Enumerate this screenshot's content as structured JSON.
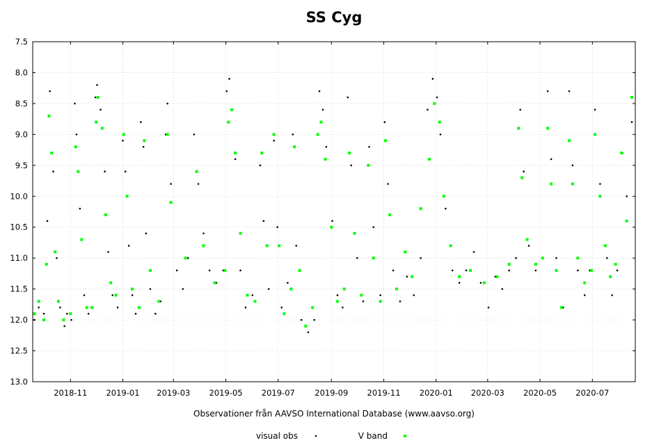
{
  "chart_data": {
    "type": "scatter",
    "title": "SS Cyg",
    "xlabel": "Observationer från AAVSO International Database (www.aavso.org)",
    "ylabel": "",
    "y_inverted": true,
    "ylim": [
      7.5,
      13.0
    ],
    "yticks": [
      "7.5",
      "8.0",
      "8.5",
      "9.0",
      "9.5",
      "10.0",
      "10.5",
      "11.0",
      "11.5",
      "12.0",
      "12.5",
      "13.0"
    ],
    "xlim": [
      "2018-09-18",
      "2020-08-20"
    ],
    "xticks": [
      "2018-11",
      "2019-01",
      "2019-03",
      "2019-05",
      "2019-07",
      "2019-09",
      "2019-11",
      "2020-01",
      "2020-03",
      "2020-05",
      "2020-07"
    ],
    "grid": true,
    "legend_position": "bottom",
    "colors": {
      "visual": "#000000",
      "vband": "#00ff00"
    },
    "series": [
      {
        "name": "visual obs",
        "marker": "dot",
        "points": [
          [
            "2018-09-20",
            12.0
          ],
          [
            "2018-09-25",
            11.8
          ],
          [
            "2018-10-01",
            11.9
          ],
          [
            "2018-10-05",
            10.4
          ],
          [
            "2018-10-08",
            8.3
          ],
          [
            "2018-10-12",
            9.6
          ],
          [
            "2018-10-16",
            11.0
          ],
          [
            "2018-10-20",
            11.8
          ],
          [
            "2018-10-25",
            12.1
          ],
          [
            "2018-10-28",
            11.9
          ],
          [
            "2018-11-02",
            12.0
          ],
          [
            "2018-11-06",
            8.5
          ],
          [
            "2018-11-08",
            9.0
          ],
          [
            "2018-11-12",
            10.2
          ],
          [
            "2018-11-17",
            11.6
          ],
          [
            "2018-11-22",
            11.9
          ],
          [
            "2018-11-30",
            8.4
          ],
          [
            "2018-12-02",
            8.2
          ],
          [
            "2018-12-06",
            8.6
          ],
          [
            "2018-12-11",
            9.6
          ],
          [
            "2018-12-15",
            10.9
          ],
          [
            "2018-12-20",
            11.6
          ],
          [
            "2018-12-26",
            11.8
          ],
          [
            "2019-01-01",
            9.1
          ],
          [
            "2019-01-04",
            9.6
          ],
          [
            "2019-01-08",
            10.8
          ],
          [
            "2019-01-12",
            11.6
          ],
          [
            "2019-01-16",
            11.9
          ],
          [
            "2019-01-22",
            8.8
          ],
          [
            "2019-01-25",
            9.2
          ],
          [
            "2019-01-28",
            10.6
          ],
          [
            "2019-02-02",
            11.5
          ],
          [
            "2019-02-08",
            11.9
          ],
          [
            "2019-02-14",
            11.7
          ],
          [
            "2019-02-20",
            9.0
          ],
          [
            "2019-02-22",
            8.5
          ],
          [
            "2019-02-26",
            9.8
          ],
          [
            "2019-03-05",
            11.2
          ],
          [
            "2019-03-12",
            11.5
          ],
          [
            "2019-03-18",
            11.0
          ],
          [
            "2019-03-25",
            9.0
          ],
          [
            "2019-03-30",
            9.8
          ],
          [
            "2019-04-05",
            10.6
          ],
          [
            "2019-04-12",
            11.2
          ],
          [
            "2019-04-20",
            11.4
          ],
          [
            "2019-04-28",
            11.2
          ],
          [
            "2019-05-02",
            8.3
          ],
          [
            "2019-05-05",
            8.1
          ],
          [
            "2019-05-08",
            8.6
          ],
          [
            "2019-05-12",
            9.4
          ],
          [
            "2019-05-18",
            11.2
          ],
          [
            "2019-05-24",
            11.8
          ],
          [
            "2019-06-01",
            11.6
          ],
          [
            "2019-06-10",
            9.5
          ],
          [
            "2019-06-14",
            10.4
          ],
          [
            "2019-06-20",
            11.5
          ],
          [
            "2019-06-26",
            9.1
          ],
          [
            "2019-06-30",
            10.5
          ],
          [
            "2019-07-05",
            11.8
          ],
          [
            "2019-07-12",
            11.4
          ],
          [
            "2019-07-18",
            9.0
          ],
          [
            "2019-07-22",
            10.8
          ],
          [
            "2019-07-28",
            12.0
          ],
          [
            "2019-08-05",
            12.2
          ],
          [
            "2019-08-12",
            12.0
          ],
          [
            "2019-08-18",
            8.3
          ],
          [
            "2019-08-22",
            8.6
          ],
          [
            "2019-08-26",
            9.2
          ],
          [
            "2019-09-02",
            10.4
          ],
          [
            "2019-09-08",
            11.6
          ],
          [
            "2019-09-14",
            11.8
          ],
          [
            "2019-09-20",
            8.4
          ],
          [
            "2019-09-24",
            9.5
          ],
          [
            "2019-10-01",
            11.0
          ],
          [
            "2019-10-08",
            11.7
          ],
          [
            "2019-10-15",
            9.2
          ],
          [
            "2019-10-20",
            10.5
          ],
          [
            "2019-10-28",
            11.6
          ],
          [
            "2019-11-02",
            8.8
          ],
          [
            "2019-11-06",
            9.8
          ],
          [
            "2019-11-12",
            11.2
          ],
          [
            "2019-11-20",
            11.7
          ],
          [
            "2019-11-28",
            11.3
          ],
          [
            "2019-12-06",
            11.6
          ],
          [
            "2019-12-14",
            11.0
          ],
          [
            "2019-12-22",
            8.6
          ],
          [
            "2019-12-28",
            8.1
          ],
          [
            "2020-01-02",
            8.4
          ],
          [
            "2020-01-06",
            9.0
          ],
          [
            "2020-01-12",
            10.2
          ],
          [
            "2020-01-20",
            11.2
          ],
          [
            "2020-01-28",
            11.4
          ],
          [
            "2020-02-05",
            11.2
          ],
          [
            "2020-02-14",
            10.9
          ],
          [
            "2020-02-22",
            11.4
          ],
          [
            "2020-03-02",
            11.8
          ],
          [
            "2020-03-10",
            11.3
          ],
          [
            "2020-03-18",
            11.5
          ],
          [
            "2020-03-26",
            11.2
          ],
          [
            "2020-04-03",
            11.0
          ],
          [
            "2020-04-08",
            8.6
          ],
          [
            "2020-04-12",
            9.6
          ],
          [
            "2020-04-18",
            10.8
          ],
          [
            "2020-04-26",
            11.2
          ],
          [
            "2020-05-04",
            11.0
          ],
          [
            "2020-05-10",
            8.3
          ],
          [
            "2020-05-14",
            9.4
          ],
          [
            "2020-05-20",
            11.0
          ],
          [
            "2020-05-28",
            11.8
          ],
          [
            "2020-06-04",
            8.3
          ],
          [
            "2020-06-08",
            9.5
          ],
          [
            "2020-06-14",
            11.2
          ],
          [
            "2020-06-22",
            11.6
          ],
          [
            "2020-06-28",
            11.2
          ],
          [
            "2020-07-04",
            8.6
          ],
          [
            "2020-07-10",
            9.8
          ],
          [
            "2020-07-18",
            11.0
          ],
          [
            "2020-07-24",
            11.6
          ],
          [
            "2020-07-30",
            11.2
          ],
          [
            "2020-08-05",
            9.3
          ],
          [
            "2020-08-10",
            10.0
          ],
          [
            "2020-08-16",
            8.8
          ]
        ]
      },
      {
        "name": "V band",
        "marker": "square",
        "points": [
          [
            "2018-09-20",
            11.9
          ],
          [
            "2018-09-25",
            11.7
          ],
          [
            "2018-10-01",
            12.0
          ],
          [
            "2018-10-04",
            11.1
          ],
          [
            "2018-10-07",
            8.7
          ],
          [
            "2018-10-10",
            9.3
          ],
          [
            "2018-10-14",
            10.9
          ],
          [
            "2018-10-18",
            11.7
          ],
          [
            "2018-10-24",
            12.0
          ],
          [
            "2018-11-01",
            11.9
          ],
          [
            "2018-11-07",
            9.2
          ],
          [
            "2018-11-10",
            9.6
          ],
          [
            "2018-11-14",
            10.7
          ],
          [
            "2018-11-20",
            11.8
          ],
          [
            "2018-11-26",
            11.8
          ],
          [
            "2018-12-01",
            8.8
          ],
          [
            "2018-12-03",
            8.4
          ],
          [
            "2018-12-08",
            8.9
          ],
          [
            "2018-12-12",
            10.3
          ],
          [
            "2018-12-18",
            11.4
          ],
          [
            "2018-12-24",
            11.6
          ],
          [
            "2019-01-02",
            9.0
          ],
          [
            "2019-01-06",
            10.0
          ],
          [
            "2019-01-12",
            11.5
          ],
          [
            "2019-01-20",
            11.8
          ],
          [
            "2019-01-26",
            9.1
          ],
          [
            "2019-02-02",
            11.2
          ],
          [
            "2019-02-12",
            11.7
          ],
          [
            "2019-02-22",
            9.0
          ],
          [
            "2019-02-26",
            10.1
          ],
          [
            "2019-03-15",
            11.0
          ],
          [
            "2019-03-28",
            9.6
          ],
          [
            "2019-04-05",
            10.8
          ],
          [
            "2019-04-18",
            11.4
          ],
          [
            "2019-04-30",
            11.2
          ],
          [
            "2019-05-04",
            8.8
          ],
          [
            "2019-05-08",
            8.6
          ],
          [
            "2019-05-12",
            9.3
          ],
          [
            "2019-05-18",
            10.6
          ],
          [
            "2019-05-26",
            11.6
          ],
          [
            "2019-06-04",
            11.7
          ],
          [
            "2019-06-12",
            9.3
          ],
          [
            "2019-06-18",
            10.8
          ],
          [
            "2019-06-26",
            9.0
          ],
          [
            "2019-07-02",
            10.8
          ],
          [
            "2019-07-08",
            11.9
          ],
          [
            "2019-07-16",
            11.5
          ],
          [
            "2019-07-20",
            9.2
          ],
          [
            "2019-07-26",
            11.2
          ],
          [
            "2019-08-02",
            12.1
          ],
          [
            "2019-08-10",
            11.8
          ],
          [
            "2019-08-16",
            9.0
          ],
          [
            "2019-08-20",
            8.8
          ],
          [
            "2019-08-25",
            9.4
          ],
          [
            "2019-09-01",
            10.5
          ],
          [
            "2019-09-08",
            11.7
          ],
          [
            "2019-09-16",
            11.5
          ],
          [
            "2019-09-22",
            9.3
          ],
          [
            "2019-09-28",
            10.6
          ],
          [
            "2019-10-06",
            11.6
          ],
          [
            "2019-10-14",
            9.5
          ],
          [
            "2019-10-20",
            11.0
          ],
          [
            "2019-10-28",
            11.7
          ],
          [
            "2019-11-03",
            9.1
          ],
          [
            "2019-11-08",
            10.3
          ],
          [
            "2019-11-16",
            11.5
          ],
          [
            "2019-11-26",
            10.9
          ],
          [
            "2019-12-04",
            11.3
          ],
          [
            "2019-12-14",
            10.2
          ],
          [
            "2019-12-24",
            9.4
          ],
          [
            "2019-12-30",
            8.5
          ],
          [
            "2020-01-05",
            8.8
          ],
          [
            "2020-01-10",
            10.0
          ],
          [
            "2020-01-18",
            10.8
          ],
          [
            "2020-01-28",
            11.3
          ],
          [
            "2020-02-10",
            11.2
          ],
          [
            "2020-02-26",
            11.4
          ],
          [
            "2020-03-12",
            11.3
          ],
          [
            "2020-03-26",
            11.1
          ],
          [
            "2020-04-06",
            8.9
          ],
          [
            "2020-04-10",
            9.7
          ],
          [
            "2020-04-16",
            10.7
          ],
          [
            "2020-04-26",
            11.1
          ],
          [
            "2020-05-04",
            11.0
          ],
          [
            "2020-05-10",
            8.9
          ],
          [
            "2020-05-14",
            9.8
          ],
          [
            "2020-05-20",
            11.2
          ],
          [
            "2020-05-26",
            11.8
          ],
          [
            "2020-06-04",
            9.1
          ],
          [
            "2020-06-08",
            9.8
          ],
          [
            "2020-06-14",
            11.0
          ],
          [
            "2020-06-22",
            11.4
          ],
          [
            "2020-06-30",
            11.2
          ],
          [
            "2020-07-04",
            9.0
          ],
          [
            "2020-07-10",
            10.0
          ],
          [
            "2020-07-16",
            10.8
          ],
          [
            "2020-07-22",
            11.3
          ],
          [
            "2020-07-28",
            11.1
          ],
          [
            "2020-08-04",
            9.3
          ],
          [
            "2020-08-10",
            10.4
          ],
          [
            "2020-08-16",
            8.4
          ]
        ]
      }
    ]
  }
}
